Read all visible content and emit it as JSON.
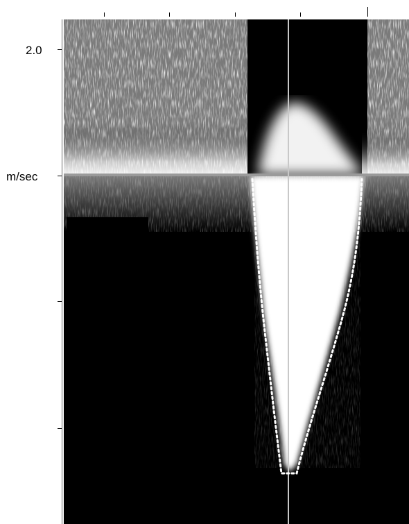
{
  "velocity_axis": {
    "top_label": "2.0",
    "unit_label": "m/sec"
  },
  "colors": {
    "background": "#ffffff",
    "spectrum": "#ffffff",
    "noise": "#000000",
    "baseline": "#9a9a9a",
    "trace": "#ffffff"
  }
}
